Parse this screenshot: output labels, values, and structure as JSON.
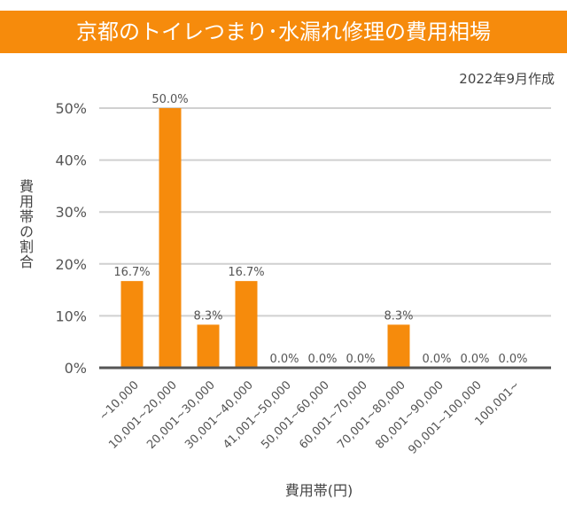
{
  "chart_data": {
    "type": "bar",
    "title": "京都のトイレつまり･水漏れ修理の費用相場",
    "subtitle": "2022年9月作成",
    "xlabel": "費用帯(円)",
    "ylabel": "費用帯の割合",
    "ylim": [
      0,
      50
    ],
    "yticks": [
      "0%",
      "10%",
      "20%",
      "30%",
      "40%",
      "50%"
    ],
    "grid": true,
    "color": "#f68b0c",
    "categories": [
      "~10,000",
      "10,001~20,000",
      "20,001~30,000",
      "30,001~40,000",
      "41,001~50,000",
      "50,001~60,000",
      "60,001~70,000",
      "70,001~80,000",
      "80,001~90,000",
      "90,001~100,000",
      "100,001~"
    ],
    "values": [
      16.7,
      50.0,
      8.3,
      16.7,
      0.0,
      0.0,
      0.0,
      8.3,
      0.0,
      0.0,
      0.0
    ],
    "data_labels": [
      "16.7%",
      "50.0%",
      "8.3%",
      "16.7%",
      "0.0%",
      "0.0%",
      "0.0%",
      "8.3%",
      "0.0%",
      "0.0%",
      "0.0%"
    ]
  }
}
